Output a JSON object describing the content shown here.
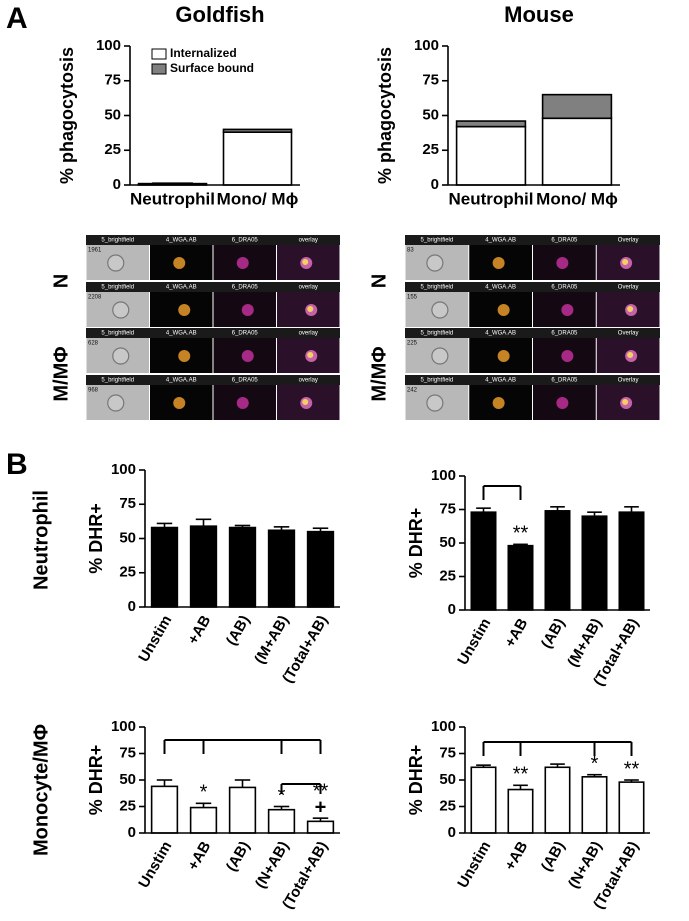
{
  "panels": [
    "A",
    "B"
  ],
  "row_labels": [
    "Neutrophil",
    "Monocyte/MΦ"
  ],
  "micrographs": [
    {
      "groups": [
        {
          "label": "N",
          "rows": [
            {
              "id": "1961",
              "channels": [
                "5_brightfield",
                "4_WGA.AB",
                "6_DRA05",
                "overlay"
              ]
            },
            {
              "id": "2208",
              "channels": [
                "5_brightfield",
                "4_WGA.AB",
                "6_DRA05",
                "overlay"
              ]
            }
          ]
        },
        {
          "label": "M/MΦ",
          "rows": [
            {
              "id": "628",
              "channels": [
                "5_brightfield",
                "4_WGA.AB",
                "6_DRA05",
                "overlay"
              ]
            },
            {
              "id": "968",
              "channels": [
                "5_brightfield",
                "4_WGA.AB",
                "6_DRA05",
                "overlay"
              ]
            }
          ]
        }
      ]
    },
    {
      "groups": [
        {
          "label": "N",
          "rows": [
            {
              "id": "83",
              "channels": [
                "5_brightfield",
                "4_WGA.AB",
                "6_DRA05",
                "Overlay"
              ]
            },
            {
              "id": "155",
              "channels": [
                "5_brightfield",
                "4_WGA.AB",
                "6_DRA05",
                "Overlay"
              ]
            }
          ]
        },
        {
          "label": "M/MΦ",
          "rows": [
            {
              "id": "225",
              "channels": [
                "5_brightfield",
                "4_WGA.AB",
                "6_DRA05",
                "Overlay"
              ]
            },
            {
              "id": "242",
              "channels": [
                "5_brightfield",
                "4_WGA.AB",
                "6_DRA05",
                "Overlay"
              ]
            }
          ]
        }
      ]
    }
  ],
  "chart_data": [
    {
      "type": "bar",
      "stacked": true,
      "title": "Goldfish",
      "ylabel": "% phagocytosis",
      "legend": "upper left",
      "categories": [
        "Neutrophil",
        "Mono/ Mϕ"
      ],
      "series": [
        {
          "name": "Internalized",
          "color": "#ffffff",
          "values": [
            1,
            38
          ],
          "errors": [
            0.3,
            1.5
          ]
        },
        {
          "name": "Surface bound",
          "color": "#808080",
          "values": [
            0,
            2
          ]
        }
      ],
      "ylim": [
        0,
        100
      ],
      "yticks": [
        0,
        25,
        50,
        75,
        100
      ]
    },
    {
      "type": "bar",
      "stacked": true,
      "title": "Mouse",
      "ylabel": "% phagocytosis",
      "categories": [
        "Neutrophil",
        "Mono/ Mϕ"
      ],
      "series": [
        {
          "name": "Internalized",
          "color": "#ffffff",
          "values": [
            42,
            48
          ],
          "errors": [
            2,
            1.5
          ]
        },
        {
          "name": "Surface bound",
          "color": "#808080",
          "values": [
            4,
            17
          ]
        }
      ],
      "ylim": [
        0,
        100
      ],
      "yticks": [
        0,
        25,
        50,
        75,
        100
      ]
    },
    {
      "type": "bar",
      "ylabel": "%  DHR+",
      "categories": [
        "Unstim",
        "+AB",
        "(AB)",
        "(M+AB)",
        "(Total+AB)"
      ],
      "series": [
        {
          "color": "#000000",
          "values": [
            58,
            59,
            58,
            56,
            55
          ],
          "errors": [
            3,
            5,
            1.5,
            2.5,
            2.5
          ]
        }
      ],
      "ylim": [
        0,
        100
      ],
      "yticks": [
        0,
        25,
        50,
        75,
        100
      ]
    },
    {
      "type": "bar",
      "ylabel": "%  DHR+",
      "categories": [
        "Unstim",
        "+AB",
        "(AB)",
        "(M+AB)",
        "(Total+AB)"
      ],
      "series": [
        {
          "color": "#000000",
          "values": [
            73,
            48,
            74,
            70,
            73
          ],
          "errors": [
            3,
            1,
            3,
            3,
            4
          ]
        }
      ],
      "annotations": [
        null,
        [
          "**"
        ],
        null,
        null,
        null
      ],
      "ylim": [
        0,
        100
      ],
      "yticks": [
        0,
        25,
        50,
        75,
        100
      ]
    },
    {
      "type": "bar",
      "ylabel": "%  DHR+",
      "categories": [
        "Unstim",
        "+AB",
        "(AB)",
        "(N+AB)",
        "(Total+AB)"
      ],
      "series": [
        {
          "color": "#ffffff",
          "values": [
            44,
            24,
            43,
            22,
            11
          ],
          "errors": [
            6,
            4,
            7,
            3,
            3
          ]
        }
      ],
      "annotations": [
        null,
        [
          "*"
        ],
        null,
        [
          "*"
        ],
        [
          "**",
          "+"
        ]
      ],
      "ylim": [
        0,
        100
      ],
      "yticks": [
        0,
        25,
        50,
        75,
        100
      ]
    },
    {
      "type": "bar",
      "ylabel": "%  DHR+",
      "categories": [
        "Unstim",
        "+AB",
        "(AB)",
        "(N+AB)",
        "(Total+AB)"
      ],
      "series": [
        {
          "color": "#ffffff",
          "values": [
            62,
            41,
            62,
            53,
            48
          ],
          "errors": [
            2,
            4,
            3,
            2,
            2
          ]
        }
      ],
      "annotations": [
        null,
        [
          "**"
        ],
        null,
        [
          "*"
        ],
        [
          "**"
        ]
      ],
      "ylim": [
        0,
        100
      ],
      "yticks": [
        0,
        25,
        50,
        75,
        100
      ]
    }
  ]
}
